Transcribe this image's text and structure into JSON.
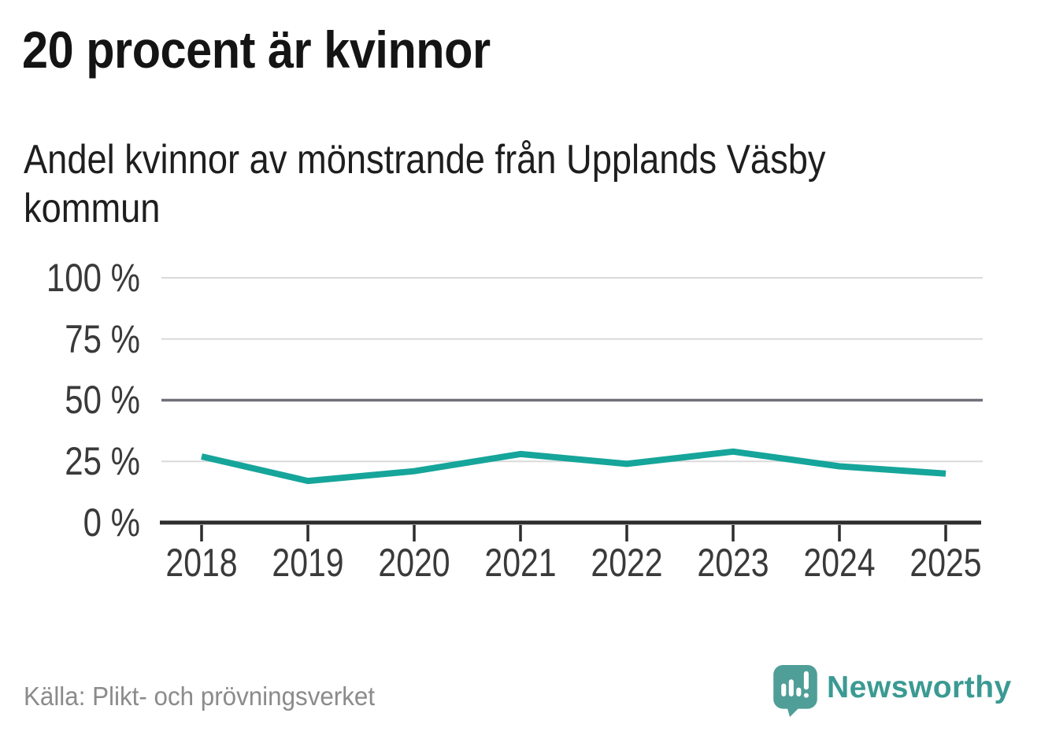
{
  "title": "20 procent är kvinnor",
  "subtitle": "Andel kvinnor av mönstrande från Upplands Väsby kommun",
  "source": "Källa: Plikt- och prövningsverket",
  "brand": {
    "name": "Newsworthy",
    "icon": "speech-bubble-bar-chart-exclamation",
    "text_color": "#3b9a93",
    "icon_color": "#4f9e97"
  },
  "chart_data": {
    "type": "line",
    "title": "20 procent är kvinnor",
    "subtitle": "Andel kvinnor av mönstrande från Upplands Väsby kommun",
    "x": [
      2018,
      2019,
      2020,
      2021,
      2022,
      2023,
      2024,
      2025
    ],
    "series": [
      {
        "name": "Andel kvinnor av mönstrande",
        "values": [
          27,
          17,
          21,
          28,
          24,
          29,
          23,
          20
        ]
      }
    ],
    "unit": "%",
    "ylim": [
      0,
      100
    ],
    "yticks": [
      100,
      75,
      50,
      25,
      0
    ],
    "ytick_labels": [
      "100 %",
      "75 %",
      "50 %",
      "25 %",
      "0 %"
    ],
    "grid": true,
    "emphasized_gridline": 50,
    "line_color": "#16a59a",
    "legend": "none",
    "source": "Källa: Plikt- och prövningsverket"
  }
}
